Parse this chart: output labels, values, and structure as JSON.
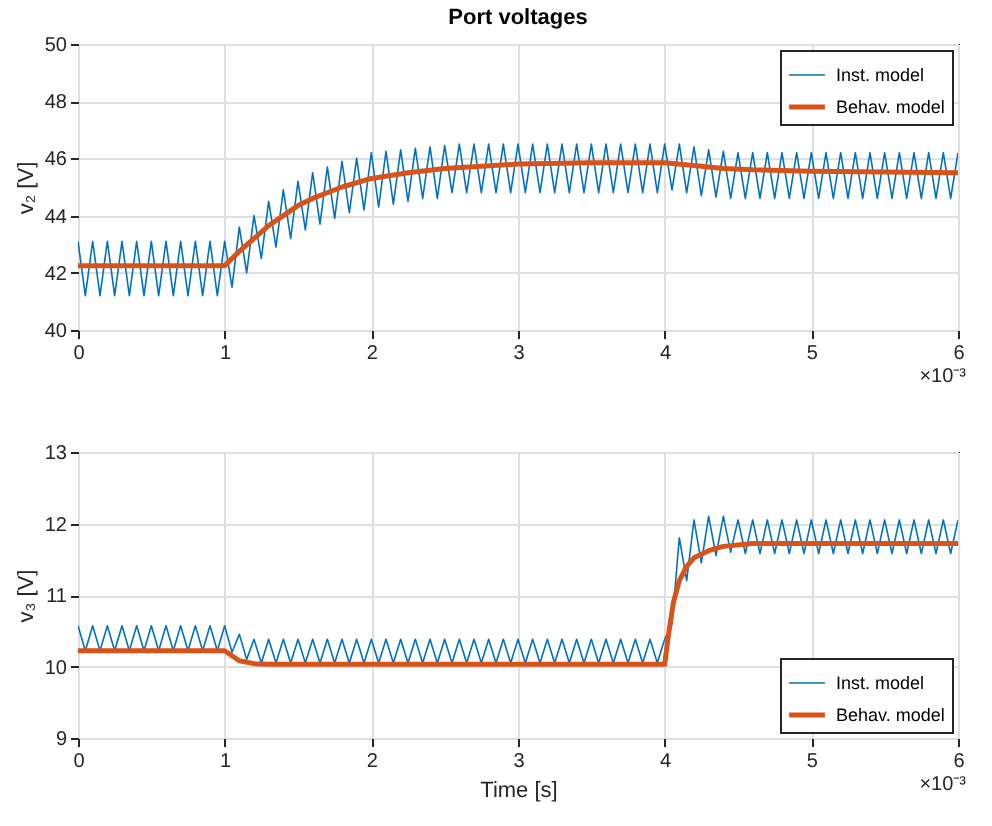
{
  "chart_data": [
    {
      "type": "line",
      "title": "Port voltages",
      "ylabel": "v₂ [V]",
      "xlim": [
        0,
        6
      ],
      "xticks": [
        0,
        1,
        2,
        3,
        4,
        5,
        6
      ],
      "ylim": [
        40,
        50
      ],
      "yticks": [
        40,
        42,
        44,
        46,
        48,
        50
      ],
      "grid": true,
      "legend": "top right",
      "annotations": [
        "×10⁻³"
      ],
      "series": [
        {
          "name": "Inst. model",
          "color": "#0072bd",
          "x": [
            0,
            0.05,
            0.1,
            0.15,
            0.2,
            0.25,
            0.3,
            0.35,
            0.4,
            0.45,
            0.5,
            0.55,
            0.6,
            0.65,
            0.7,
            0.75,
            0.8,
            0.85,
            0.9,
            0.95,
            1,
            1.05,
            1.1,
            1.15,
            1.2,
            1.25,
            1.3,
            1.35,
            1.4,
            1.45,
            1.5,
            1.55,
            1.6,
            1.65,
            1.7,
            1.75,
            1.8,
            1.85,
            1.9,
            1.95,
            2,
            2.05,
            2.1,
            2.15,
            2.2,
            2.25,
            2.3,
            2.35,
            2.4,
            2.45,
            2.5,
            2.55,
            2.6,
            2.65,
            2.7,
            2.75,
            2.8,
            2.85,
            2.9,
            2.95,
            3,
            3.05,
            3.1,
            3.15,
            3.2,
            3.25,
            3.3,
            3.35,
            3.4,
            3.45,
            3.5,
            3.55,
            3.6,
            3.65,
            3.7,
            3.75,
            3.8,
            3.85,
            3.9,
            3.95,
            4,
            4.05,
            4.1,
            4.15,
            4.2,
            4.25,
            4.3,
            4.35,
            4.4,
            4.45,
            4.5,
            4.55,
            4.6,
            4.65,
            4.7,
            4.75,
            4.8,
            4.85,
            4.9,
            4.95,
            5,
            5.05,
            5.1,
            5.15,
            5.2,
            5.25,
            5.3,
            5.35,
            5.4,
            5.45,
            5.5,
            5.55,
            5.6,
            5.65,
            5.7,
            5.75,
            5.8,
            5.85,
            5.9,
            5.95,
            6
          ],
          "values": [
            43.1,
            41.2,
            43.1,
            41.2,
            43.1,
            41.2,
            43.1,
            41.2,
            43.1,
            41.2,
            43.1,
            41.2,
            43.1,
            41.2,
            43.1,
            41.2,
            43.1,
            41.2,
            43.1,
            41.2,
            43.1,
            41.5,
            43.6,
            42.0,
            44.0,
            42.5,
            44.5,
            42.9,
            44.9,
            43.2,
            45.2,
            43.5,
            45.5,
            43.7,
            45.7,
            43.9,
            45.9,
            44.1,
            46.0,
            44.2,
            46.2,
            44.3,
            46.25,
            44.4,
            46.3,
            44.5,
            46.35,
            44.6,
            46.4,
            44.6,
            46.45,
            44.8,
            46.5,
            44.8,
            46.5,
            44.8,
            46.5,
            44.8,
            46.5,
            44.8,
            46.5,
            44.8,
            46.5,
            44.8,
            46.5,
            44.8,
            46.5,
            44.8,
            46.5,
            44.8,
            46.5,
            44.8,
            46.5,
            44.8,
            46.5,
            44.8,
            46.5,
            44.8,
            46.5,
            44.8,
            46.5,
            44.9,
            46.5,
            44.8,
            46.4,
            44.7,
            46.3,
            44.65,
            46.25,
            44.6,
            46.2,
            44.6,
            46.2,
            44.6,
            46.2,
            44.6,
            46.2,
            44.6,
            46.2,
            44.6,
            46.2,
            44.6,
            46.2,
            44.6,
            46.2,
            44.6,
            46.2,
            44.6,
            46.2,
            44.6,
            46.2,
            44.6,
            46.2,
            44.6,
            46.2,
            44.6,
            46.2,
            44.6,
            46.2,
            44.6,
            46.2
          ]
        },
        {
          "name": "Behav. model",
          "color": "#d95319",
          "x": [
            0,
            1,
            1.1,
            1.2,
            1.3,
            1.4,
            1.5,
            1.6,
            1.8,
            2,
            2.25,
            2.5,
            3,
            3.5,
            4,
            4.2,
            4.4,
            4.6,
            5,
            6
          ],
          "values": [
            42.25,
            42.25,
            42.75,
            43.2,
            43.65,
            44.0,
            44.35,
            44.6,
            45.0,
            45.3,
            45.5,
            45.65,
            45.8,
            45.85,
            45.85,
            45.75,
            45.65,
            45.6,
            45.55,
            45.5
          ]
        }
      ]
    },
    {
      "type": "line",
      "xlabel": "Time [s]",
      "ylabel": "v₃ [V]",
      "xlim": [
        0,
        6
      ],
      "xticks": [
        0,
        1,
        2,
        3,
        4,
        5,
        6
      ],
      "ylim": [
        9,
        13
      ],
      "yticks": [
        9,
        10,
        11,
        12,
        13
      ],
      "grid": true,
      "legend": "bottom right",
      "annotations": [
        "×10⁻³"
      ],
      "series": [
        {
          "name": "Inst. model",
          "color": "#0072bd",
          "x": [
            0,
            0.05,
            0.1,
            0.15,
            0.2,
            0.25,
            0.3,
            0.35,
            0.4,
            0.45,
            0.5,
            0.55,
            0.6,
            0.65,
            0.7,
            0.75,
            0.8,
            0.85,
            0.9,
            0.95,
            1,
            1.05,
            1.1,
            1.15,
            1.2,
            1.25,
            1.3,
            1.35,
            1.4,
            1.45,
            1.5,
            1.55,
            1.6,
            1.65,
            1.7,
            1.75,
            1.8,
            1.85,
            1.9,
            1.95,
            2,
            2.05,
            2.1,
            2.15,
            2.2,
            2.25,
            2.3,
            2.35,
            2.4,
            2.45,
            2.5,
            2.55,
            2.6,
            2.65,
            2.7,
            2.75,
            2.8,
            2.85,
            2.9,
            2.95,
            3,
            3.05,
            3.1,
            3.15,
            3.2,
            3.25,
            3.3,
            3.35,
            3.4,
            3.45,
            3.5,
            3.55,
            3.6,
            3.65,
            3.7,
            3.75,
            3.8,
            3.85,
            3.9,
            3.95,
            4,
            4.05,
            4.1,
            4.15,
            4.2,
            4.25,
            4.3,
            4.35,
            4.4,
            4.45,
            4.5,
            4.55,
            4.6,
            4.65,
            4.7,
            4.75,
            4.8,
            4.85,
            4.9,
            4.95,
            5,
            5.05,
            5.1,
            5.15,
            5.2,
            5.25,
            5.3,
            5.35,
            5.4,
            5.45,
            5.5,
            5.55,
            5.6,
            5.65,
            5.7,
            5.75,
            5.8,
            5.85,
            5.9,
            5.95,
            6
          ],
          "values": [
            10.57,
            10.22,
            10.57,
            10.22,
            10.57,
            10.22,
            10.57,
            10.22,
            10.57,
            10.22,
            10.57,
            10.22,
            10.57,
            10.22,
            10.57,
            10.22,
            10.57,
            10.22,
            10.57,
            10.22,
            10.57,
            10.2,
            10.45,
            10.1,
            10.38,
            10.05,
            10.38,
            10.05,
            10.38,
            10.05,
            10.38,
            10.05,
            10.38,
            10.05,
            10.38,
            10.05,
            10.38,
            10.05,
            10.38,
            10.05,
            10.38,
            10.05,
            10.38,
            10.05,
            10.38,
            10.05,
            10.38,
            10.05,
            10.38,
            10.05,
            10.38,
            10.05,
            10.38,
            10.05,
            10.38,
            10.05,
            10.38,
            10.05,
            10.38,
            10.05,
            10.38,
            10.05,
            10.38,
            10.05,
            10.38,
            10.05,
            10.38,
            10.05,
            10.38,
            10.05,
            10.38,
            10.05,
            10.38,
            10.05,
            10.38,
            10.05,
            10.38,
            10.05,
            10.38,
            10.05,
            10.38,
            10.6,
            11.8,
            11.2,
            12.05,
            11.45,
            12.1,
            11.55,
            12.1,
            11.6,
            12.05,
            11.58,
            12.05,
            11.58,
            12.05,
            11.58,
            12.05,
            11.58,
            12.05,
            11.58,
            12.05,
            11.58,
            12.05,
            11.58,
            12.05,
            11.58,
            12.05,
            11.58,
            12.05,
            11.58,
            12.05,
            11.58,
            12.05,
            11.58,
            12.05,
            11.58,
            12.05,
            11.58,
            12.05,
            11.58,
            12.05
          ]
        },
        {
          "name": "Behav. model",
          "color": "#d95319",
          "x": [
            0,
            1,
            1.05,
            1.1,
            1.2,
            1.3,
            4,
            4.03,
            4.06,
            4.1,
            4.15,
            4.2,
            4.3,
            4.4,
            4.6,
            5,
            6
          ],
          "values": [
            10.22,
            10.22,
            10.15,
            10.08,
            10.04,
            10.03,
            10.03,
            10.5,
            10.9,
            11.2,
            11.4,
            11.52,
            11.62,
            11.68,
            11.72,
            11.72,
            11.72
          ]
        }
      ]
    }
  ]
}
